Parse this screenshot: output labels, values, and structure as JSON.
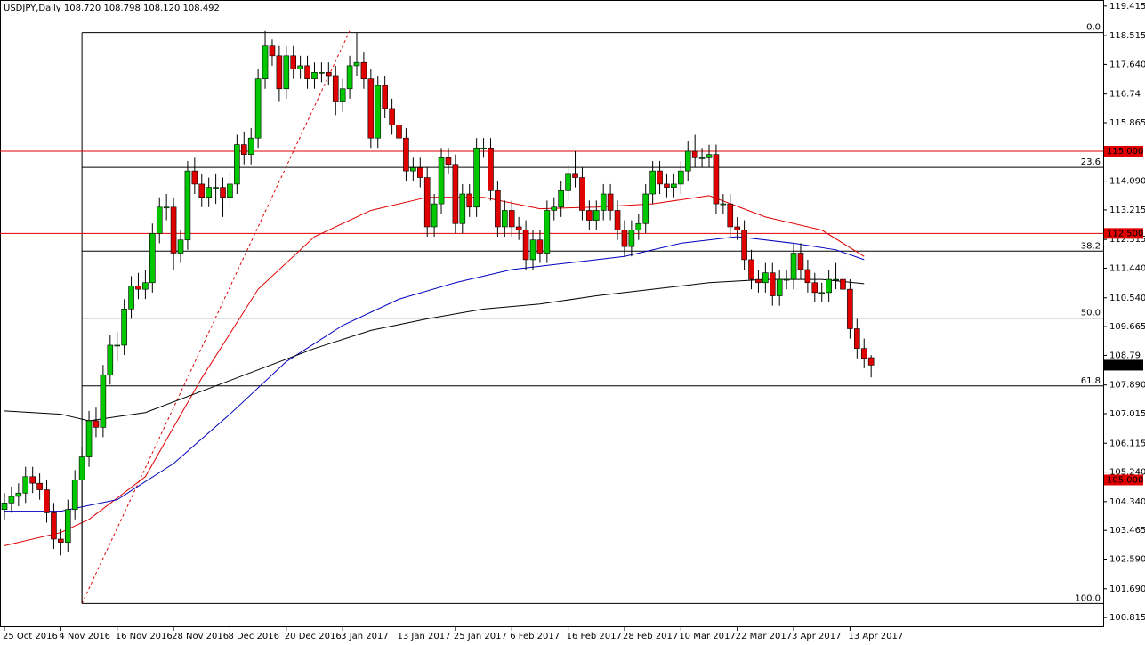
{
  "chart_data": {
    "type": "candlestick",
    "title": "USDJPY,Daily",
    "last_bar_labels": [
      "108.720",
      "108.798",
      "108.120",
      "108.492"
    ],
    "categories": [
      "25 Oct 2016",
      null,
      null,
      null,
      null,
      null,
      null,
      null,
      "4 Nov 2016",
      null,
      null,
      null,
      null,
      null,
      null,
      null,
      "16 Nov 2016",
      null,
      null,
      null,
      null,
      null,
      null,
      null,
      "28 Nov 2016",
      null,
      null,
      null,
      null,
      null,
      null,
      null,
      "8 Dec 2016",
      null,
      null,
      null,
      null,
      null,
      null,
      null,
      "20 Dec 2016",
      null,
      null,
      null,
      null,
      null,
      null,
      null,
      "3 Jan 2017",
      null,
      null,
      null,
      null,
      null,
      null,
      null,
      "13 Jan 2017",
      null,
      null,
      null,
      null,
      null,
      null,
      null,
      "25 Jan 2017",
      null,
      null,
      null,
      null,
      null,
      null,
      null,
      "6 Feb 2017",
      null,
      null,
      null,
      null,
      null,
      null,
      null,
      "16 Feb 2017",
      null,
      null,
      null,
      null,
      null,
      null,
      null,
      "28 Feb 2017",
      null,
      null,
      null,
      null,
      null,
      null,
      null,
      "10 Mar 2017",
      null,
      null,
      null,
      null,
      null,
      null,
      null,
      "22 Mar 2017",
      null,
      null,
      null,
      null,
      null,
      null,
      null,
      "3 Apr 2017",
      null,
      null,
      null,
      null,
      null,
      null,
      null,
      "13 Apr 2017",
      null,
      null,
      null
    ],
    "ohlc": [
      [
        104.1,
        104.6,
        103.8,
        104.3
      ],
      [
        104.3,
        104.8,
        104.0,
        104.5
      ],
      [
        104.5,
        104.9,
        104.2,
        104.6
      ],
      [
        104.6,
        105.4,
        104.3,
        105.1
      ],
      [
        105.1,
        105.4,
        104.6,
        104.9
      ],
      [
        104.9,
        105.2,
        104.4,
        104.7
      ],
      [
        104.7,
        105.0,
        103.7,
        104.0
      ],
      [
        104.0,
        104.3,
        102.9,
        103.2
      ],
      [
        103.2,
        103.5,
        102.7,
        103.1
      ],
      [
        103.1,
        104.4,
        102.8,
        104.1
      ],
      [
        104.1,
        105.3,
        103.8,
        105.0
      ],
      [
        105.0,
        106.0,
        101.24,
        105.7
      ],
      [
        105.7,
        107.1,
        105.4,
        106.8
      ],
      [
        106.8,
        107.2,
        106.3,
        106.6
      ],
      [
        106.6,
        108.5,
        106.3,
        108.2
      ],
      [
        108.2,
        109.4,
        107.9,
        109.1
      ],
      [
        109.1,
        109.5,
        108.6,
        109.1
      ],
      [
        109.1,
        110.5,
        108.8,
        110.2
      ],
      [
        110.2,
        111.2,
        109.9,
        110.9
      ],
      [
        110.9,
        111.3,
        110.5,
        110.8
      ],
      [
        110.8,
        111.4,
        110.5,
        111.0
      ],
      [
        111.0,
        112.8,
        110.7,
        112.5
      ],
      [
        112.5,
        113.6,
        112.2,
        113.3
      ],
      [
        113.3,
        113.7,
        112.9,
        113.3
      ],
      [
        113.3,
        113.6,
        111.4,
        111.9
      ],
      [
        111.9,
        112.6,
        111.6,
        112.3
      ],
      [
        112.3,
        114.7,
        112.0,
        114.4
      ],
      [
        114.4,
        114.8,
        113.7,
        114.0
      ],
      [
        114.0,
        114.3,
        113.3,
        113.6
      ],
      [
        113.6,
        114.2,
        113.3,
        113.9
      ],
      [
        113.9,
        114.3,
        113.4,
        113.9
      ],
      [
        113.9,
        114.2,
        113.0,
        113.6
      ],
      [
        113.6,
        114.4,
        113.3,
        114.0
      ],
      [
        114.0,
        115.5,
        113.7,
        115.2
      ],
      [
        115.2,
        115.6,
        114.6,
        114.9
      ],
      [
        114.9,
        115.7,
        114.6,
        115.4
      ],
      [
        115.4,
        117.5,
        115.1,
        117.2
      ],
      [
        117.2,
        118.66,
        116.9,
        118.2
      ],
      [
        118.2,
        118.4,
        117.6,
        117.9
      ],
      [
        117.9,
        118.2,
        116.5,
        116.9
      ],
      [
        116.9,
        118.2,
        116.6,
        117.9
      ],
      [
        117.9,
        118.2,
        117.2,
        117.5
      ],
      [
        117.5,
        117.9,
        117.2,
        117.6
      ],
      [
        117.6,
        117.9,
        116.9,
        117.2
      ],
      [
        117.2,
        117.7,
        116.9,
        117.4
      ],
      [
        117.4,
        117.7,
        117.1,
        117.4
      ],
      [
        117.4,
        117.7,
        117.0,
        117.3
      ],
      [
        117.3,
        117.6,
        116.1,
        116.5
      ],
      [
        116.5,
        117.2,
        116.2,
        116.9
      ],
      [
        116.9,
        117.9,
        116.6,
        117.6
      ],
      [
        117.6,
        118.6,
        117.3,
        117.7
      ],
      [
        117.7,
        118.0,
        116.9,
        117.2
      ],
      [
        117.2,
        117.5,
        115.1,
        115.4
      ],
      [
        115.4,
        117.3,
        115.1,
        117.0
      ],
      [
        117.0,
        117.3,
        116.0,
        116.3
      ],
      [
        116.3,
        116.6,
        115.5,
        115.8
      ],
      [
        115.8,
        116.1,
        115.1,
        115.4
      ],
      [
        115.4,
        115.7,
        114.1,
        114.4
      ],
      [
        114.4,
        114.8,
        114.1,
        114.5
      ],
      [
        114.5,
        114.8,
        113.9,
        114.2
      ],
      [
        114.2,
        114.5,
        112.4,
        112.7
      ],
      [
        112.7,
        113.7,
        112.4,
        113.4
      ],
      [
        113.4,
        115.1,
        113.1,
        114.8
      ],
      [
        114.8,
        115.1,
        114.3,
        114.6
      ],
      [
        114.6,
        114.9,
        112.5,
        112.8
      ],
      [
        112.8,
        114.0,
        112.5,
        113.7
      ],
      [
        113.7,
        114.0,
        113.0,
        113.3
      ],
      [
        113.3,
        115.4,
        113.0,
        115.1
      ],
      [
        115.1,
        115.4,
        114.8,
        115.1
      ],
      [
        115.1,
        115.4,
        113.5,
        113.8
      ],
      [
        113.8,
        114.1,
        112.4,
        112.7
      ],
      [
        112.7,
        113.5,
        112.4,
        113.2
      ],
      [
        113.2,
        113.5,
        112.4,
        112.7
      ],
      [
        112.7,
        113.0,
        112.3,
        112.6
      ],
      [
        112.6,
        112.9,
        111.4,
        111.7
      ],
      [
        111.7,
        112.6,
        111.4,
        112.3
      ],
      [
        112.3,
        112.6,
        111.6,
        111.9
      ],
      [
        111.9,
        113.5,
        111.6,
        113.2
      ],
      [
        113.2,
        113.6,
        112.9,
        113.3
      ],
      [
        113.3,
        114.1,
        113.0,
        113.8
      ],
      [
        113.8,
        114.6,
        113.5,
        114.3
      ],
      [
        114.3,
        115.0,
        113.9,
        114.2
      ],
      [
        114.2,
        114.5,
        112.9,
        113.2
      ],
      [
        113.2,
        113.5,
        112.6,
        112.9
      ],
      [
        112.9,
        113.5,
        112.6,
        113.2
      ],
      [
        113.2,
        114.0,
        112.9,
        113.7
      ],
      [
        113.7,
        114.0,
        112.9,
        113.2
      ],
      [
        113.2,
        113.5,
        112.3,
        112.6
      ],
      [
        112.6,
        112.9,
        111.8,
        112.1
      ],
      [
        112.1,
        112.9,
        111.8,
        112.6
      ],
      [
        112.6,
        113.1,
        112.3,
        112.8
      ],
      [
        112.8,
        114.0,
        112.5,
        113.7
      ],
      [
        113.7,
        114.7,
        113.4,
        114.4
      ],
      [
        114.4,
        114.7,
        113.7,
        114.0
      ],
      [
        114.0,
        114.3,
        113.6,
        113.9
      ],
      [
        113.9,
        114.3,
        113.6,
        114.0
      ],
      [
        114.0,
        114.7,
        113.7,
        114.4
      ],
      [
        114.4,
        115.3,
        114.1,
        115.0
      ],
      [
        115.0,
        115.5,
        114.5,
        114.8
      ],
      [
        114.8,
        115.1,
        114.5,
        114.8
      ],
      [
        114.8,
        115.2,
        114.5,
        114.9
      ],
      [
        114.9,
        115.2,
        113.1,
        113.4
      ],
      [
        113.4,
        113.7,
        113.1,
        113.4
      ],
      [
        113.4,
        113.7,
        112.4,
        112.7
      ],
      [
        112.7,
        113.0,
        112.3,
        112.6
      ],
      [
        112.6,
        112.9,
        111.4,
        111.7
      ],
      [
        111.7,
        112.0,
        110.8,
        111.1
      ],
      [
        111.1,
        111.4,
        110.7,
        111.0
      ],
      [
        111.0,
        111.6,
        110.7,
        111.3
      ],
      [
        111.3,
        111.6,
        110.3,
        110.6
      ],
      [
        110.6,
        111.4,
        110.3,
        111.1
      ],
      [
        111.1,
        111.4,
        110.8,
        111.1
      ],
      [
        111.1,
        112.2,
        110.8,
        111.9
      ],
      [
        111.9,
        112.2,
        111.1,
        111.4
      ],
      [
        111.4,
        111.7,
        110.7,
        111.0
      ],
      [
        111.0,
        111.3,
        110.4,
        110.7
      ],
      [
        110.7,
        111.0,
        110.4,
        110.7
      ],
      [
        110.7,
        111.4,
        110.4,
        111.1
      ],
      [
        111.1,
        111.6,
        110.8,
        111.1
      ],
      [
        111.1,
        111.4,
        110.5,
        110.8
      ],
      [
        110.8,
        111.1,
        109.3,
        109.6
      ],
      [
        109.6,
        109.9,
        108.7,
        109.0
      ],
      [
        109.0,
        109.3,
        108.4,
        108.7
      ],
      [
        108.72,
        108.798,
        108.12,
        108.492
      ]
    ],
    "bull_color": "#00c800",
    "bear_color": "#e00000",
    "moving_averages": [
      {
        "color": "#e00000",
        "x": [
          0,
          8,
          12,
          20,
          28,
          36,
          44,
          52,
          60,
          68,
          76,
          84,
          92,
          100,
          108,
          116,
          122
        ],
        "values": [
          103.0,
          103.4,
          103.8,
          105.1,
          108.1,
          110.8,
          112.4,
          113.2,
          113.6,
          113.6,
          113.25,
          113.3,
          113.4,
          113.65,
          113.0,
          112.6,
          111.8
        ]
      },
      {
        "color": "#0000c0",
        "x": [
          0,
          8,
          16,
          24,
          32,
          40,
          48,
          56,
          64,
          72,
          80,
          88,
          96,
          104,
          112,
          118,
          122
        ],
        "values": [
          104.05,
          104.05,
          104.4,
          105.5,
          107.0,
          108.6,
          109.7,
          110.5,
          111.0,
          111.4,
          111.6,
          111.8,
          112.2,
          112.4,
          112.2,
          112.0,
          111.7
        ]
      },
      {
        "color": "#000000",
        "x": [
          0,
          8,
          12,
          20,
          28,
          36,
          44,
          52,
          60,
          68,
          76,
          84,
          92,
          100,
          108,
          116,
          122
        ],
        "values": [
          107.1,
          107.0,
          106.8,
          107.05,
          107.7,
          108.35,
          109.0,
          109.55,
          109.9,
          110.2,
          110.35,
          110.6,
          110.8,
          111.0,
          111.1,
          111.1,
          110.97
        ]
      }
    ],
    "levels": [
      {
        "value": 115,
        "label": "115.000"
      },
      {
        "value": 112.5,
        "label": "112.500"
      },
      {
        "value": 105,
        "label": "105.000"
      }
    ],
    "level_color": "#e00000",
    "fibonacci": {
      "start": 11,
      "levels": [
        {
          "label": "0.0",
          "value": 118.61
        },
        {
          "label": "23.6",
          "value": 114.51
        },
        {
          "label": "38.2",
          "value": 111.96
        },
        {
          "label": "50.0",
          "value": 109.92
        },
        {
          "label": "61.8",
          "value": 107.86
        },
        {
          "label": "100.0",
          "value": 101.24
        }
      ]
    },
    "trendline": {
      "color": "#e00000",
      "x": [
        11,
        49
      ],
      "values": [
        101.24,
        118.66
      ]
    },
    "ylim": [
      100.52,
      119.6
    ],
    "yticks": [
      119.415,
      118.515,
      {
        "value": 117.64,
        "label": "117.640"
      },
      116.74,
      115.865,
      {
        "value": 114.09,
        "label": "114.090"
      },
      113.215,
      112.315,
      {
        "value": 111.44,
        "label": "111.440"
      },
      {
        "value": 110.54,
        "label": "110.540"
      },
      109.665,
      108.79,
      {
        "value": 107.89,
        "label": "107.890"
      },
      107.015,
      106.115,
      {
        "value": 105.24,
        "label": "105.240"
      },
      {
        "value": 104.34,
        "label": "104.340"
      },
      103.465,
      {
        "value": 102.59,
        "label": "102.590"
      },
      {
        "value": 101.69,
        "label": "101.690"
      },
      100.815
    ]
  }
}
